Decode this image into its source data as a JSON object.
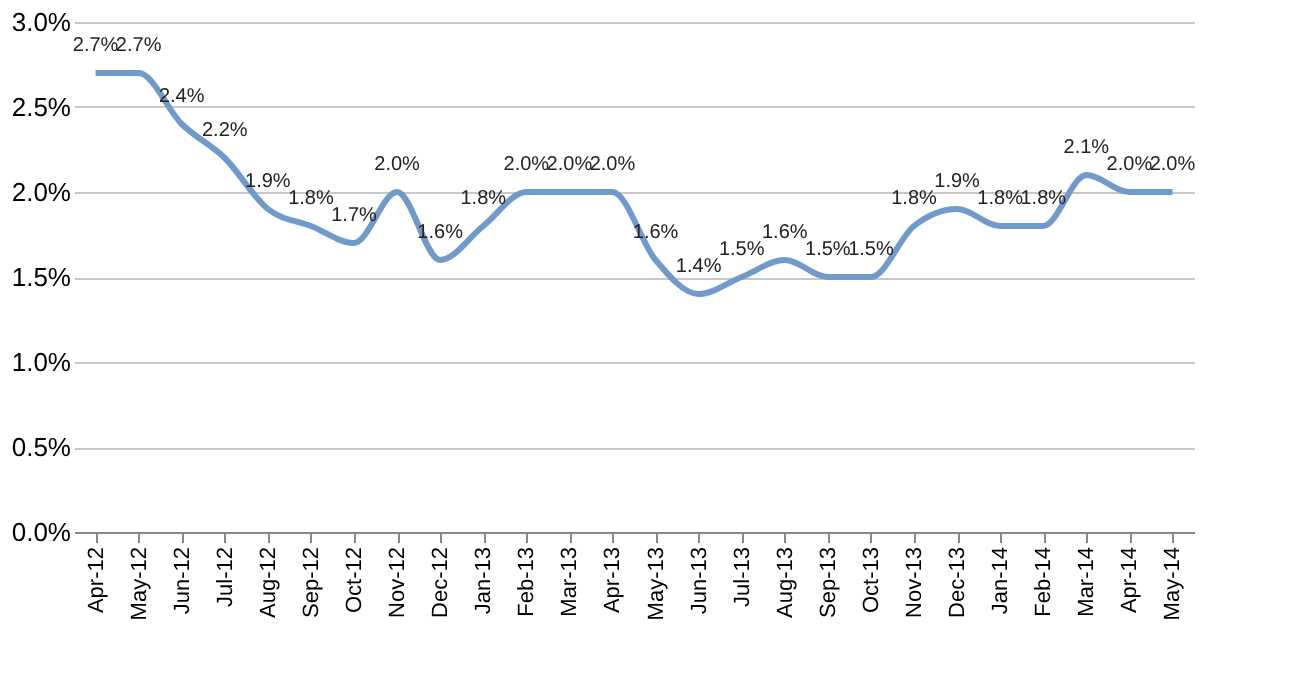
{
  "chart_data": {
    "type": "line",
    "categories": [
      "Apr-12",
      "May-12",
      "Jun-12",
      "Jul-12",
      "Aug-12",
      "Sep-12",
      "Oct-12",
      "Nov-12",
      "Dec-12",
      "Jan-13",
      "Feb-13",
      "Mar-13",
      "Apr-13",
      "May-13",
      "Jun-13",
      "Jul-13",
      "Aug-13",
      "Sep-13",
      "Oct-13",
      "Nov-13",
      "Dec-13",
      "Jan-14",
      "Feb-14",
      "Mar-14",
      "Apr-14",
      "May-14"
    ],
    "series": [
      {
        "color": "#6f9ac9",
        "values": [
          2.7,
          2.7,
          2.4,
          2.2,
          1.9,
          1.8,
          1.7,
          2.0,
          1.6,
          1.8,
          2.0,
          2.0,
          2.0,
          1.6,
          1.4,
          1.5,
          1.6,
          1.5,
          1.5,
          1.8,
          1.9,
          1.8,
          1.8,
          2.1,
          2.0,
          2.0
        ],
        "value_labels": [
          "2.7%",
          "2.7%",
          "2.4%",
          "2.2%",
          "1.9%",
          "1.8%",
          "1.7%",
          "2.0%",
          "1.6%",
          "1.8%",
          "2.0%",
          "2.0%",
          "2.0%",
          "1.6%",
          "1.4%",
          "1.5%",
          "1.6%",
          "1.5%",
          "1.5%",
          "1.8%",
          "1.9%",
          "1.8%",
          "1.8%",
          "2.1%",
          "2.0%",
          "2.0%"
        ]
      }
    ],
    "ylim": [
      0,
      3
    ],
    "yticks": [
      {
        "value": 0,
        "label": "0.0%"
      },
      {
        "value": 0.5,
        "label": "0.5%"
      },
      {
        "value": 1,
        "label": "1.0%"
      },
      {
        "value": 1.5,
        "label": "1.5%"
      },
      {
        "value": 2,
        "label": "2.0%"
      },
      {
        "value": 2.5,
        "label": "2.5%"
      },
      {
        "value": 3,
        "label": "3.0%"
      }
    ],
    "grid": "y",
    "marker": "none",
    "line_style": "solid"
  }
}
